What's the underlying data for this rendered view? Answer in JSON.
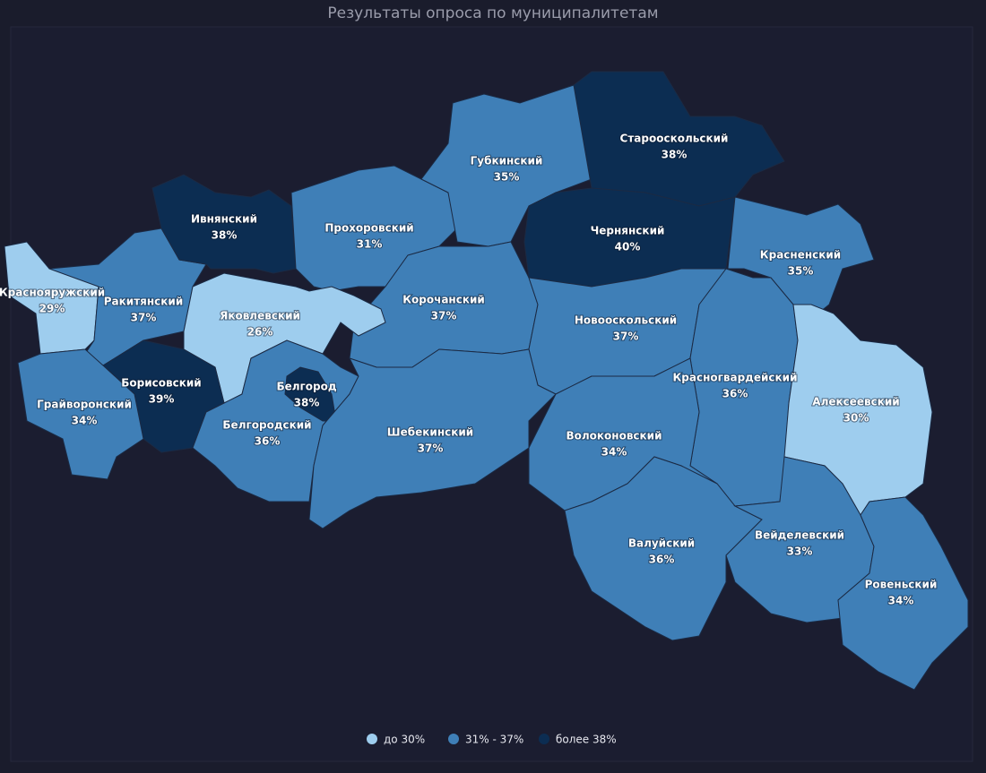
{
  "title": "Результаты опроса по муниципалитетам",
  "legend": [
    {
      "label": "до 30%",
      "color": "#9ecdee"
    },
    {
      "label": "31% - 37%",
      "color": "#3f7fb7"
    },
    {
      "label": "более 38%",
      "color": "#0c2d52"
    }
  ],
  "regions": [
    {
      "name": "Краснояружский",
      "share": "29%",
      "group": 0
    },
    {
      "name": "Ракитянский",
      "share": "37%",
      "group": 1
    },
    {
      "name": "Ивнянский",
      "share": "38%",
      "group": 2
    },
    {
      "name": "Прохоровский",
      "share": "31%",
      "group": 1
    },
    {
      "name": "Губкинский",
      "share": "35%",
      "group": 1
    },
    {
      "name": "Старооскольский",
      "share": "38%",
      "group": 2
    },
    {
      "name": "Чернянский",
      "share": "40%",
      "group": 2
    },
    {
      "name": "Красненский",
      "share": "35%",
      "group": 1
    },
    {
      "name": "Корочанский",
      "share": "37%",
      "group": 1
    },
    {
      "name": "Яковлевский",
      "share": "26%",
      "group": 0
    },
    {
      "name": "Новооскольский",
      "share": "37%",
      "group": 1
    },
    {
      "name": "Борисовский",
      "share": "39%",
      "group": 2
    },
    {
      "name": "Белгород",
      "share": "38%",
      "group": 2
    },
    {
      "name": "Грайворонский",
      "share": "34%",
      "group": 1
    },
    {
      "name": "Красногвардейский",
      "share": "36%",
      "group": 1
    },
    {
      "name": "Алексеевский",
      "share": "30%",
      "group": 0
    },
    {
      "name": "Белгородский",
      "share": "36%",
      "group": 1
    },
    {
      "name": "Шебекинский",
      "share": "37%",
      "group": 1
    },
    {
      "name": "Волоконовский",
      "share": "34%",
      "group": 1
    },
    {
      "name": "Валуйский",
      "share": "36%",
      "group": 1
    },
    {
      "name": "Вейделевский",
      "share": "33%",
      "group": 1
    },
    {
      "name": "Ровеньский",
      "share": "34%",
      "group": 1
    }
  ]
}
